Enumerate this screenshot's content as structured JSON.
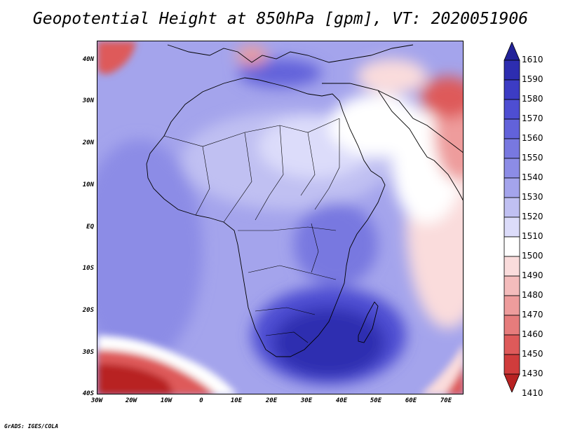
{
  "title": "Geopotential Height at 850hPa [gpm], VT: 2020051906",
  "credit": "GrADS: IGES/COLA",
  "map": {
    "lat_labels": [
      "40N",
      "30N",
      "20N",
      "10N",
      "EQ",
      "10S",
      "20S",
      "30S",
      "40S"
    ],
    "lon_labels": [
      "30W",
      "20W",
      "10W",
      "0",
      "10E",
      "20E",
      "30E",
      "40E",
      "50E",
      "60E",
      "70E"
    ],
    "lon_range": [
      -30,
      75
    ],
    "lat_range": [
      -40,
      44
    ]
  },
  "colorbar": {
    "levels": [
      "1610",
      "1590",
      "1580",
      "1570",
      "1560",
      "1550",
      "1540",
      "1530",
      "1520",
      "1510",
      "1500",
      "1490",
      "1480",
      "1470",
      "1460",
      "1450",
      "1430",
      "1410"
    ],
    "colors": [
      "#222299",
      "#2d2db0",
      "#3c3cc4",
      "#4e4ed2",
      "#6262da",
      "#7878e0",
      "#8c8ce6",
      "#a4a4ec",
      "#c0c0f2",
      "#dcdcfa",
      "#ffffff",
      "#fadcdc",
      "#f4bcbc",
      "#ee9c9c",
      "#e67c7c",
      "#de5a5a",
      "#d03c3c",
      "#b82222"
    ]
  },
  "colors": {
    "ocean_base": "#a4a4ec",
    "land_north": "#dcdcfa",
    "high_south": "#3c3cc4",
    "low_arabia": "#ee9c9c"
  }
}
